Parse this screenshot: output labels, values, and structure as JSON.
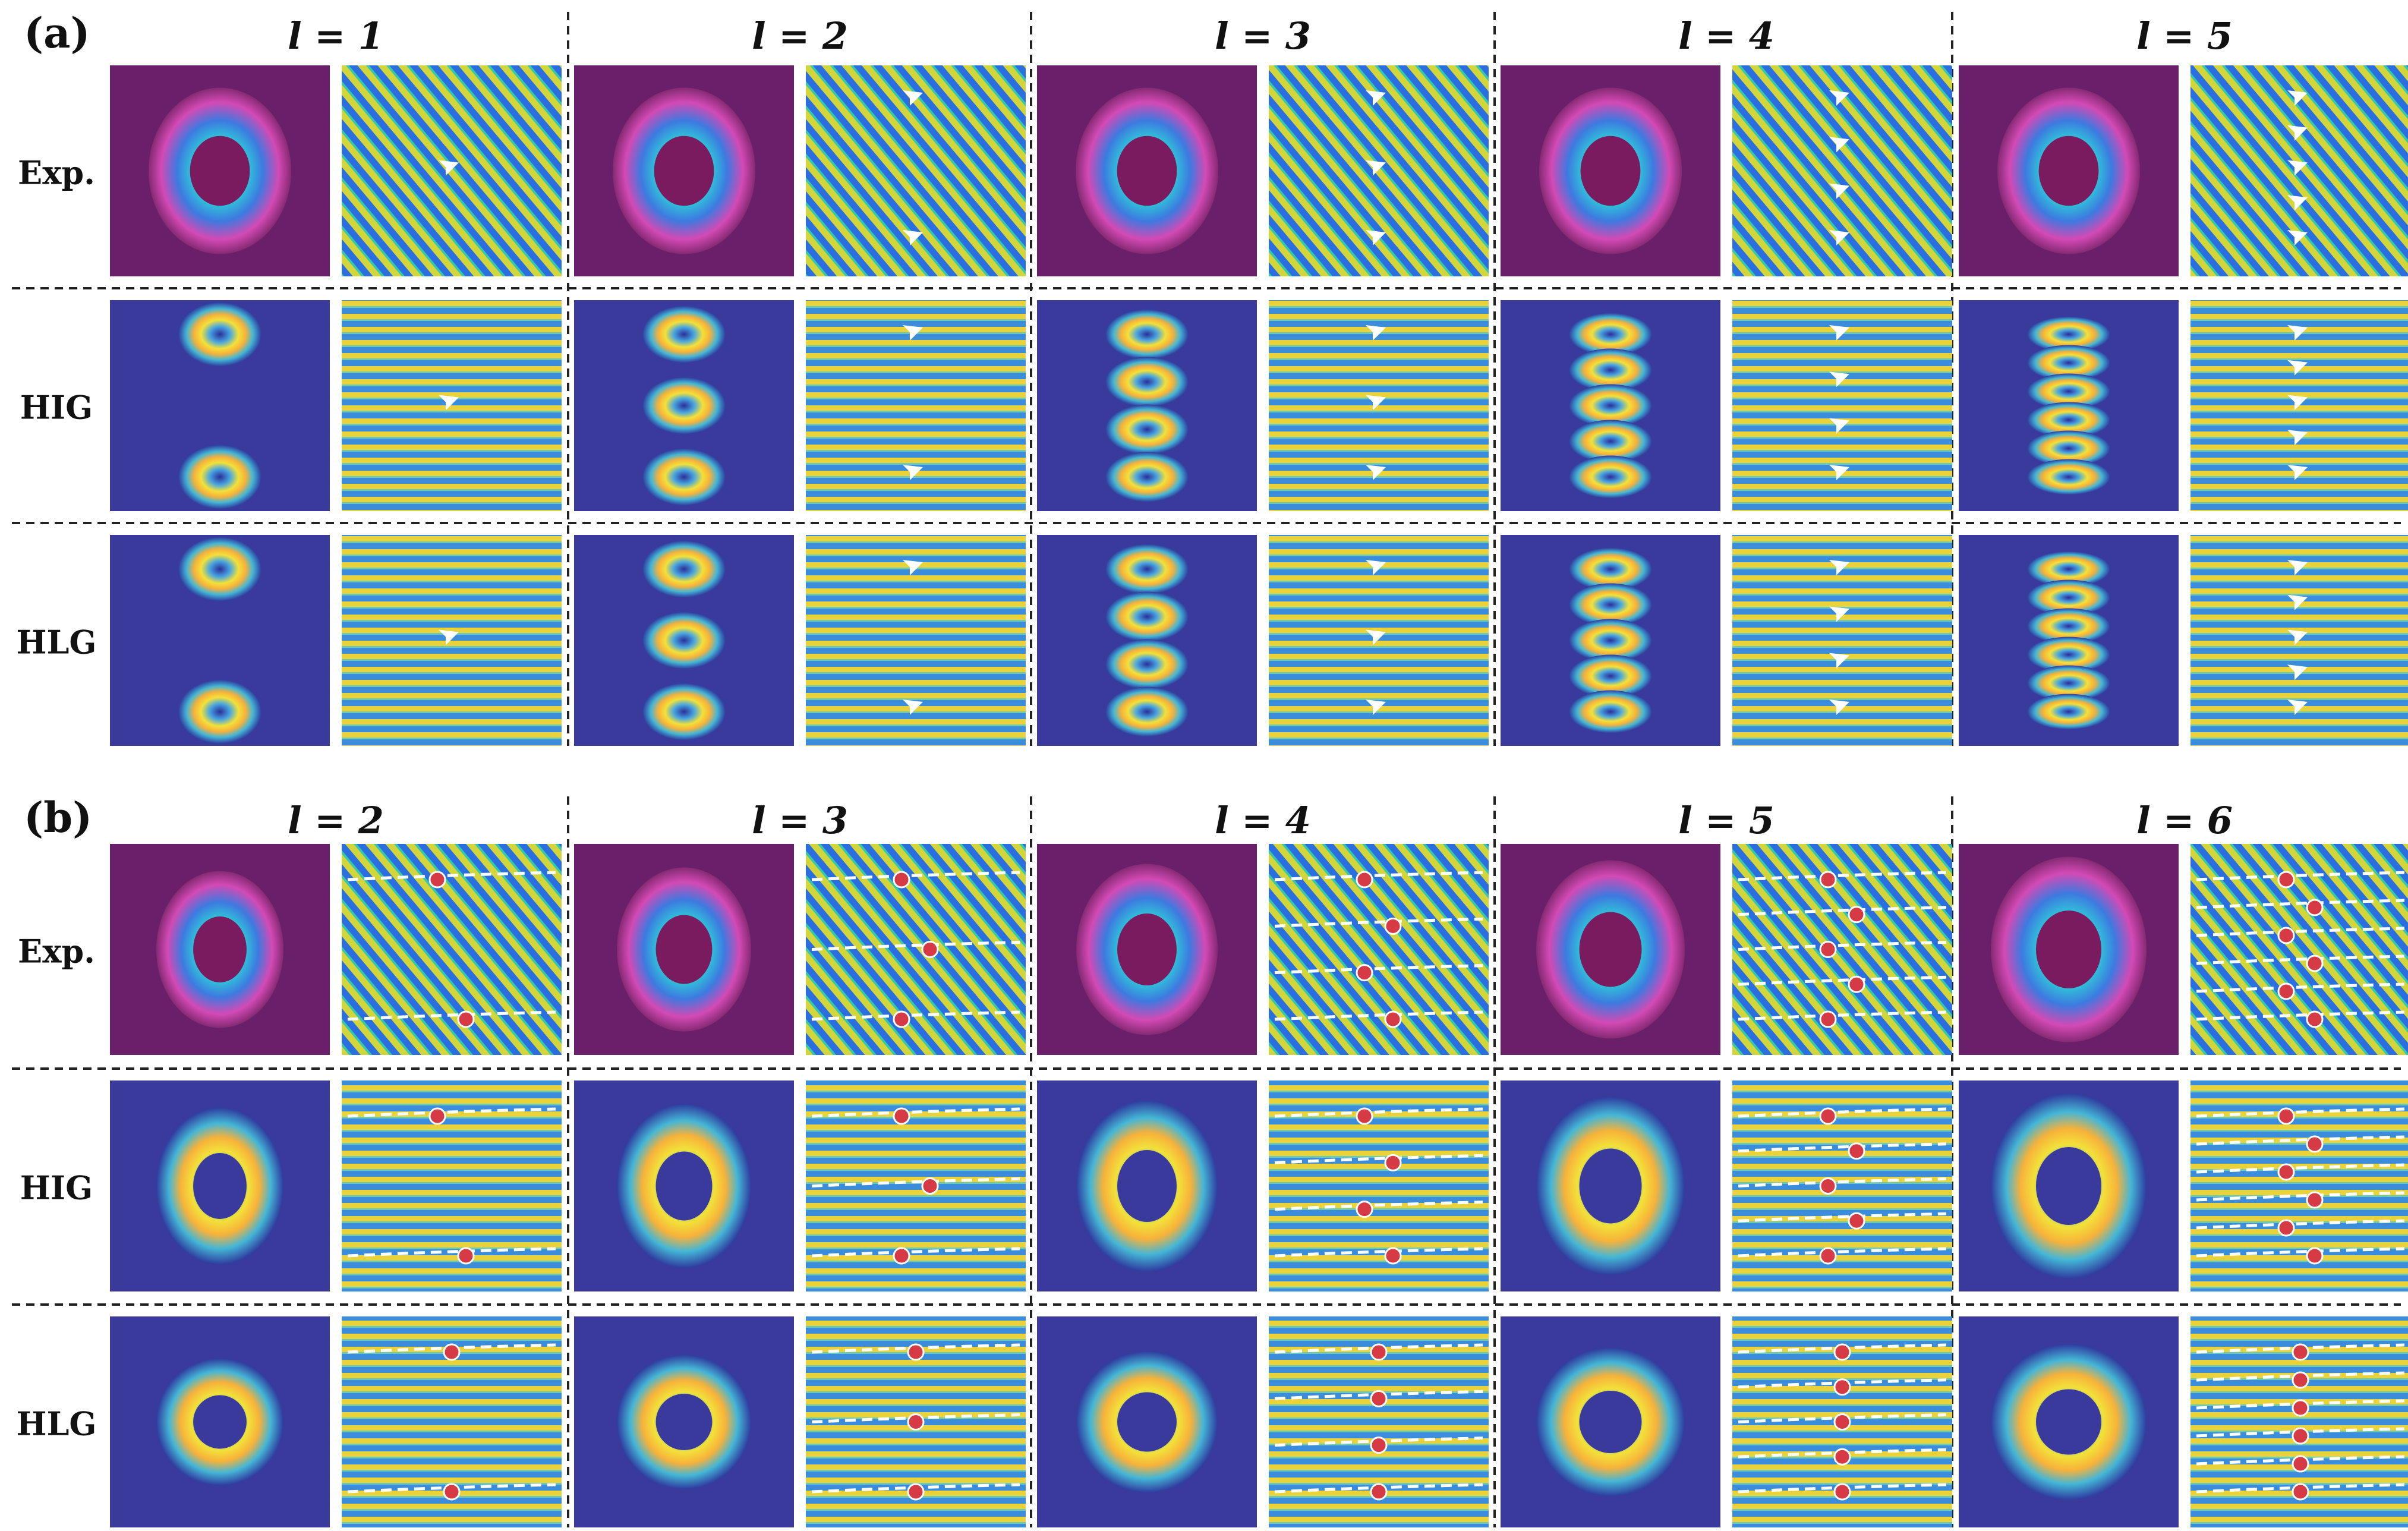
{
  "panels": [
    {
      "label": "(a)",
      "columns": [
        "l = 1",
        "l = 2",
        "l = 3",
        "l = 4",
        "l = 5"
      ],
      "rows": [
        "Exp.",
        "HIG",
        "HLG"
      ],
      "l_values": [
        1,
        2,
        3,
        4,
        5
      ],
      "marker": "white-arrow-icon"
    },
    {
      "label": "(b)",
      "columns": [
        "l = 2",
        "l = 3",
        "l = 4",
        "l = 5",
        "l = 6"
      ],
      "rows": [
        "Exp.",
        "HIG",
        "HLG"
      ],
      "l_values": [
        2,
        3,
        4,
        5,
        6
      ],
      "marker": "red-dot-icon"
    }
  ],
  "colors": {
    "background": "#3a3a9c",
    "exp_background": "#6a1f6b",
    "arrow": "#ffffff",
    "dot": "#d63a45",
    "dashed_line": "#ffffff"
  }
}
